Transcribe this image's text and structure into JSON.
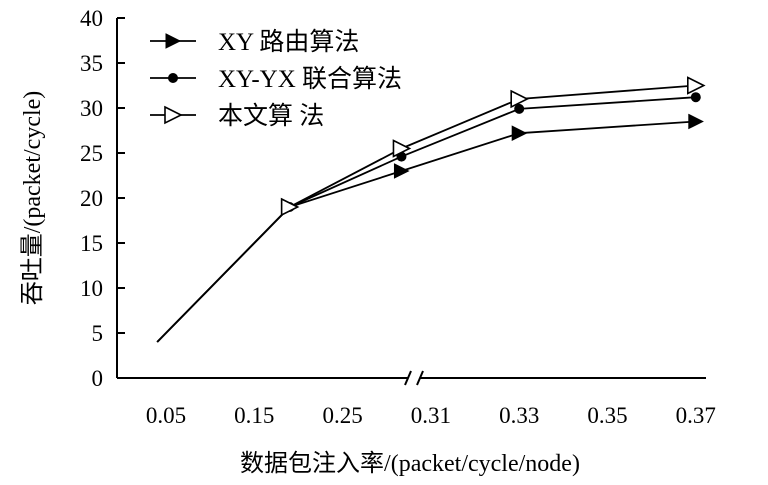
{
  "chart_data": {
    "type": "line",
    "xlabel": "数据包注入率/(packet/cycle/node)",
    "ylabel": "吞吐量/(packet/cycle)",
    "x": [
      0.05,
      0.15,
      0.25,
      0.31,
      0.33,
      0.35,
      0.37
    ],
    "x_tick_labels": [
      "0.05",
      "0.15",
      "0.25",
      "0.31",
      "0.33",
      "0.35",
      "0.37"
    ],
    "x_axis_break": "between 0.25 and 0.31",
    "ylim": [
      0,
      40
    ],
    "y_ticks": [
      0,
      5,
      10,
      15,
      20,
      25,
      30,
      35,
      40
    ],
    "grid": false,
    "legend_position": "top-left",
    "series": [
      {
        "name": "XY 路由算法",
        "marker": "filled-triangle-right",
        "points": [
          {
            "x": 0.04,
            "y": 4
          },
          {
            "x": 0.19,
            "y": 19
          },
          {
            "x": 0.29,
            "y": 23
          },
          {
            "x": 0.33,
            "y": 27.2
          },
          {
            "x": 0.37,
            "y": 28.5
          }
        ]
      },
      {
        "name": "XY-YX 联合算法",
        "marker": "filled-circle",
        "points": [
          {
            "x": 0.04,
            "y": 4
          },
          {
            "x": 0.19,
            "y": 19
          },
          {
            "x": 0.29,
            "y": 24.6
          },
          {
            "x": 0.33,
            "y": 29.9
          },
          {
            "x": 0.37,
            "y": 31.2
          }
        ]
      },
      {
        "name": "本文算 法",
        "marker": "open-triangle-right",
        "points": [
          {
            "x": 0.04,
            "y": 4
          },
          {
            "x": 0.19,
            "y": 19
          },
          {
            "x": 0.29,
            "y": 25.5
          },
          {
            "x": 0.33,
            "y": 31
          },
          {
            "x": 0.37,
            "y": 32.5
          }
        ]
      }
    ]
  }
}
